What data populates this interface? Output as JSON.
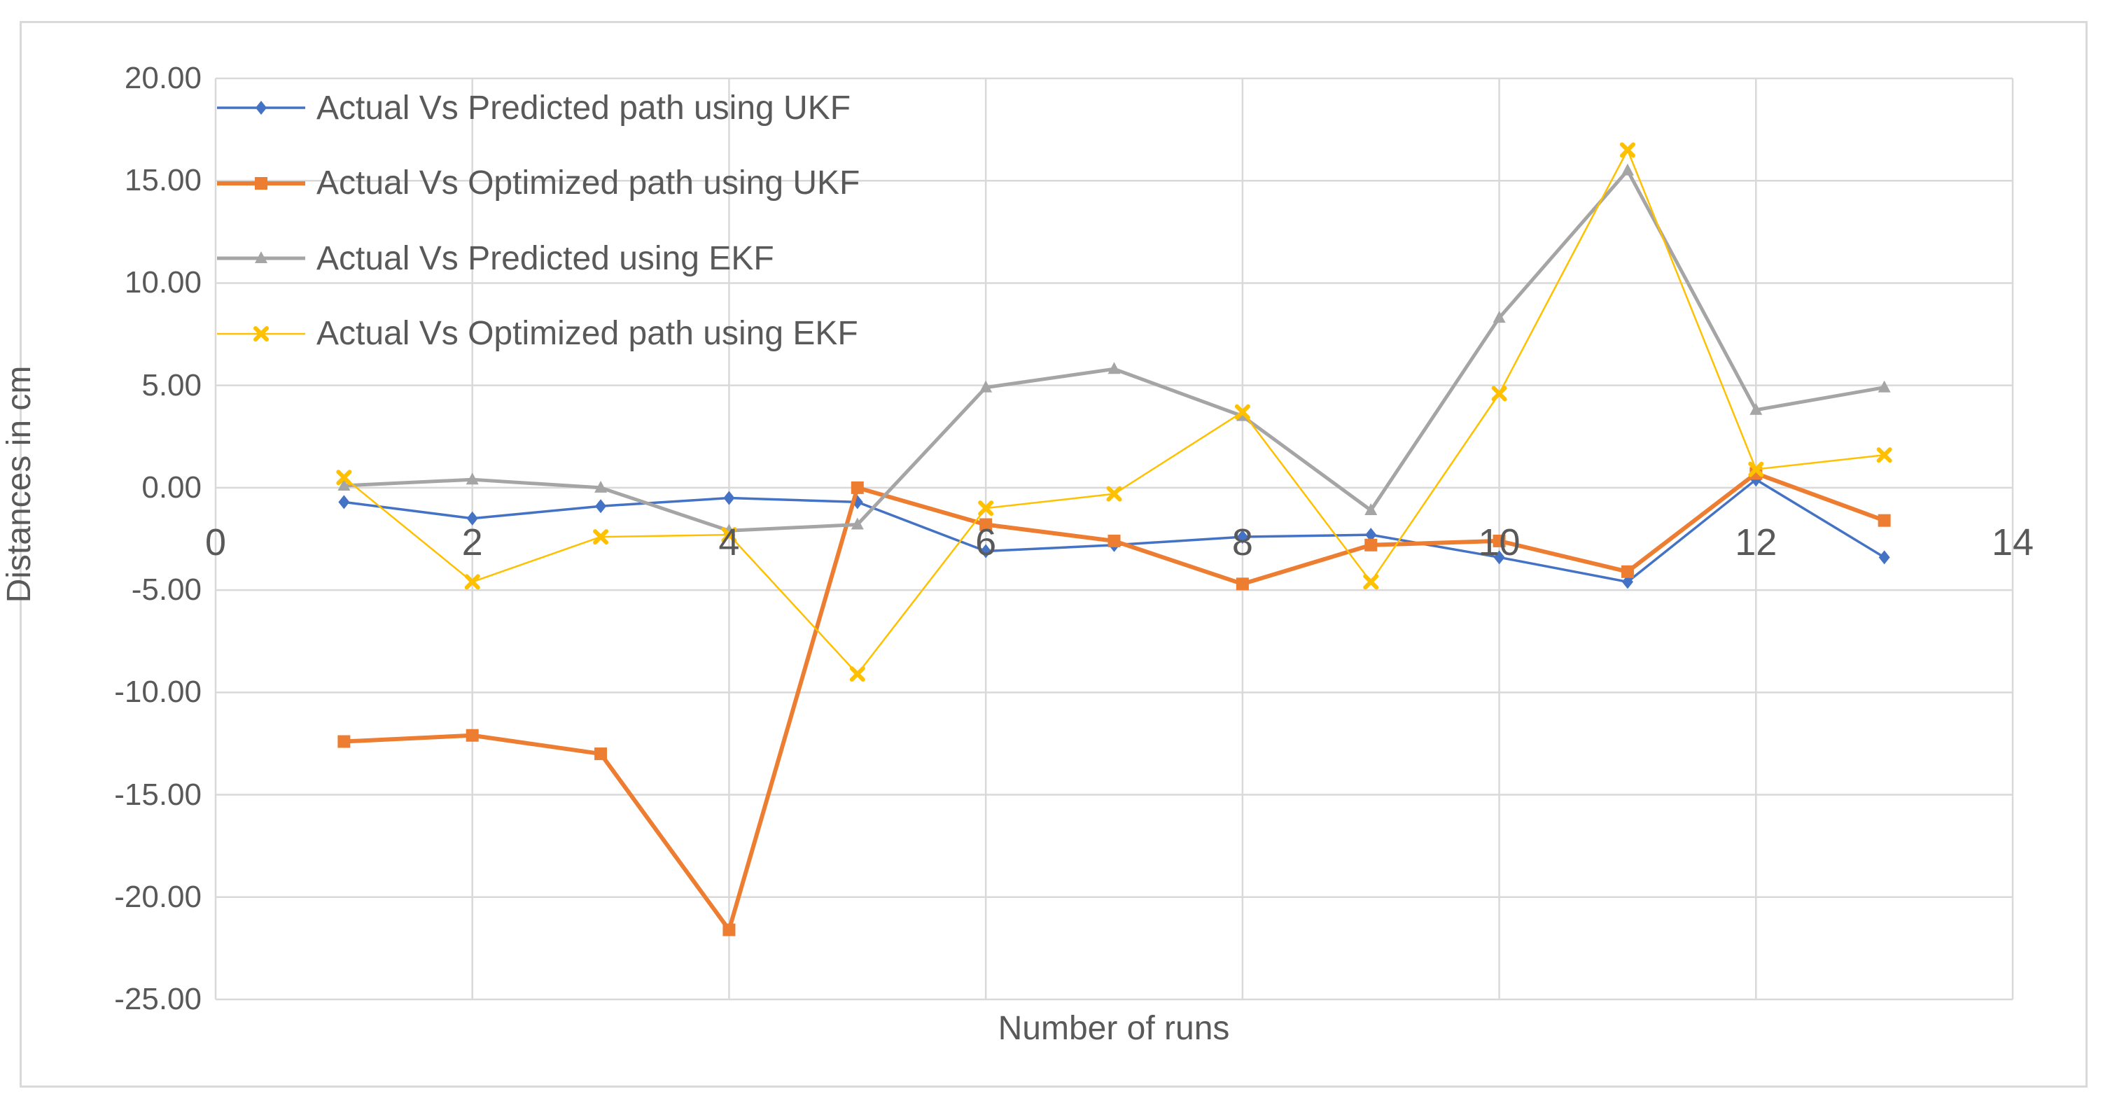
{
  "chart": {
    "x_axis_title": "Number of runs",
    "y_axis_title": "Distances in cm",
    "background_color": "#ffffff",
    "frame_border_color": "#d9d9d9",
    "gridline_color": "#d9d9d9",
    "text_color": "#595959",
    "y_tick_labels": [
      "20.00",
      "15.00",
      "10.00",
      "5.00",
      "0.00",
      "-5.00",
      "-10.00",
      "-15.00",
      "-20.00",
      "-25.00"
    ],
    "y_tick_values": [
      20,
      15,
      10,
      5,
      0,
      -5,
      -10,
      -15,
      -20,
      -25
    ],
    "x_tick_labels": [
      "0",
      "2",
      "4",
      "6",
      "8",
      "10",
      "12",
      "14"
    ],
    "x_tick_values": [
      0,
      2,
      4,
      6,
      8,
      10,
      12,
      14
    ]
  },
  "chart_data": {
    "type": "line",
    "title": "",
    "xlabel": "Number of runs",
    "ylabel": "Distances in cm",
    "xlim": [
      0,
      14
    ],
    "ylim": [
      -25,
      20
    ],
    "grid": true,
    "legend_position": "top-left-inside",
    "x": [
      1,
      2,
      3,
      4,
      5,
      6,
      7,
      8,
      9,
      10,
      11,
      12,
      13
    ],
    "series": [
      {
        "name": "Actual Vs Predicted path using UKF",
        "color": "#4472C4",
        "marker": "diamond",
        "line_width": 3.5,
        "values": [
          -0.7,
          -1.5,
          -0.9,
          -0.5,
          -0.7,
          -3.1,
          -2.8,
          -2.4,
          -2.3,
          -3.4,
          -4.6,
          0.4,
          -3.4
        ]
      },
      {
        "name": "Actual Vs Optimized path using UKF",
        "color": "#ED7D31",
        "marker": "square",
        "line_width": 6,
        "values": [
          -12.4,
          -12.1,
          -13.0,
          -21.6,
          0.0,
          -1.8,
          -2.6,
          -4.7,
          -2.8,
          -2.6,
          -4.1,
          0.7,
          -1.6
        ]
      },
      {
        "name": "Actual Vs Predicted using EKF",
        "color": "#A5A5A5",
        "marker": "triangle",
        "line_width": 5,
        "values": [
          0.1,
          0.4,
          0.0,
          -2.1,
          -1.8,
          4.9,
          5.8,
          3.5,
          -1.1,
          8.3,
          15.5,
          3.8,
          4.9
        ]
      },
      {
        "name": "Actual Vs Optimized path using EKF",
        "color": "#FFC000",
        "marker": "x",
        "line_width": 2.5,
        "values": [
          0.5,
          -4.6,
          -2.4,
          -2.3,
          -9.1,
          -1.0,
          -0.3,
          3.7,
          -4.6,
          4.6,
          16.5,
          0.9,
          1.6
        ]
      }
    ]
  }
}
